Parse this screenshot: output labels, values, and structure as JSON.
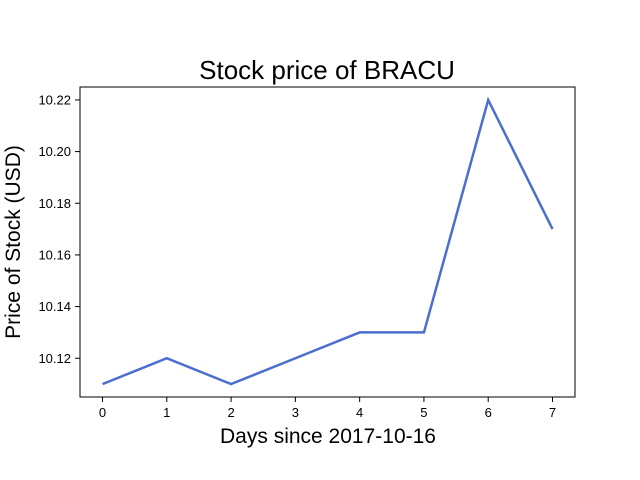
{
  "chart_data": {
    "type": "line",
    "title": "Stock price of BRACU",
    "xlabel": "Days since 2017-10-16",
    "ylabel": "Price of Stock (USD)",
    "x": [
      0,
      1,
      2,
      3,
      4,
      5,
      6,
      7
    ],
    "x_ticks": [
      "0",
      "1",
      "2",
      "3",
      "4",
      "5",
      "6",
      "7"
    ],
    "y_ticks": [
      "10.12",
      "10.14",
      "10.16",
      "10.18",
      "10.20",
      "10.22"
    ],
    "series": [
      {
        "values": [
          10.11,
          10.12,
          10.11,
          10.12,
          10.13,
          10.13,
          10.22,
          10.17
        ],
        "color": "#4a6fcf"
      }
    ],
    "xlim": [
      -0.35,
      7.35
    ],
    "ylim": [
      10.105,
      10.225
    ],
    "grid": false,
    "legend": "none"
  }
}
